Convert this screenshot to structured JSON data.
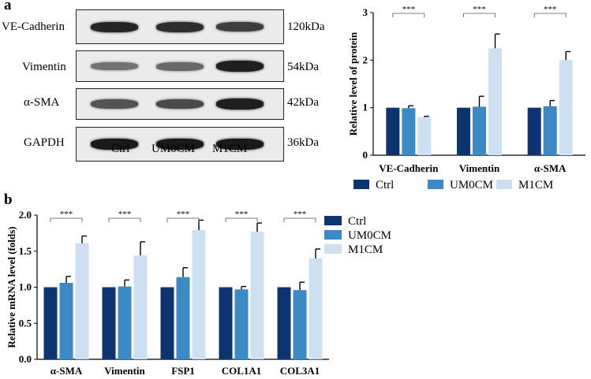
{
  "panel_a_label": "a",
  "panel_b_label": "b",
  "blot": {
    "lanes": [
      "Ctrl",
      "UM0CM",
      "M1CM"
    ],
    "rows": [
      {
        "protein": "VE-Cadherin",
        "kda": "120kDa",
        "intensity": [
          0.92,
          0.88,
          0.8
        ]
      },
      {
        "protein": "Vimentin",
        "kda": "54kDa",
        "intensity": [
          0.55,
          0.6,
          0.95
        ]
      },
      {
        "protein": "α-SMA",
        "kda": "42kDa",
        "intensity": [
          0.7,
          0.75,
          0.95
        ]
      },
      {
        "protein": "GAPDH",
        "kda": "36kDa",
        "intensity": [
          0.97,
          0.97,
          0.97
        ]
      }
    ]
  },
  "colors": {
    "Ctrl": "#0d3470",
    "UM0CM": "#3b8ac5",
    "M1CM": "#cde0f1"
  },
  "chart_data": [
    {
      "type": "bar",
      "title": "",
      "xlabel": "",
      "ylabel": "Relative level of protein",
      "ylim": [
        0,
        3
      ],
      "yticks": [
        "0",
        "1",
        "2",
        "3"
      ],
      "categories": [
        "VE-Cadherin",
        "Vimentin",
        "α-SMA"
      ],
      "series": [
        {
          "name": "Ctrl",
          "values": [
            1.0,
            1.0,
            1.0
          ],
          "errors": [
            0,
            0,
            0
          ]
        },
        {
          "name": "UM0CM",
          "values": [
            0.99,
            1.02,
            1.03
          ],
          "errors": [
            0.05,
            0.22,
            0.12
          ]
        },
        {
          "name": "M1CM",
          "values": [
            0.8,
            2.25,
            2.0
          ],
          "errors": [
            0.02,
            0.3,
            0.18
          ]
        }
      ],
      "significance": [
        "***",
        "***",
        "***"
      ],
      "legend": "bottom",
      "grid": false
    },
    {
      "type": "bar",
      "title": "",
      "xlabel": "",
      "ylabel": "Relative mRNA level (folds)",
      "ylim": [
        0,
        2.0
      ],
      "yticks": [
        "0.0",
        "0.5",
        "1.0",
        "1.5",
        "2.0"
      ],
      "categories": [
        "α-SMA",
        "Vimentin",
        "FSP1",
        "COL1A1",
        "COL3A1"
      ],
      "series": [
        {
          "name": "Ctrl",
          "values": [
            1.0,
            1.0,
            1.0,
            1.0,
            1.0
          ],
          "errors": [
            0,
            0,
            0,
            0,
            0
          ]
        },
        {
          "name": "UM0CM",
          "values": [
            1.06,
            1.01,
            1.14,
            0.97,
            0.96
          ],
          "errors": [
            0.09,
            0.09,
            0.13,
            0.04,
            0.11
          ]
        },
        {
          "name": "M1CM",
          "values": [
            1.61,
            1.44,
            1.79,
            1.77,
            1.4
          ],
          "errors": [
            0.1,
            0.19,
            0.14,
            0.12,
            0.13
          ]
        }
      ],
      "significance": [
        "***",
        "***",
        "***",
        "***",
        "***"
      ],
      "legend": "right",
      "grid": false
    }
  ]
}
